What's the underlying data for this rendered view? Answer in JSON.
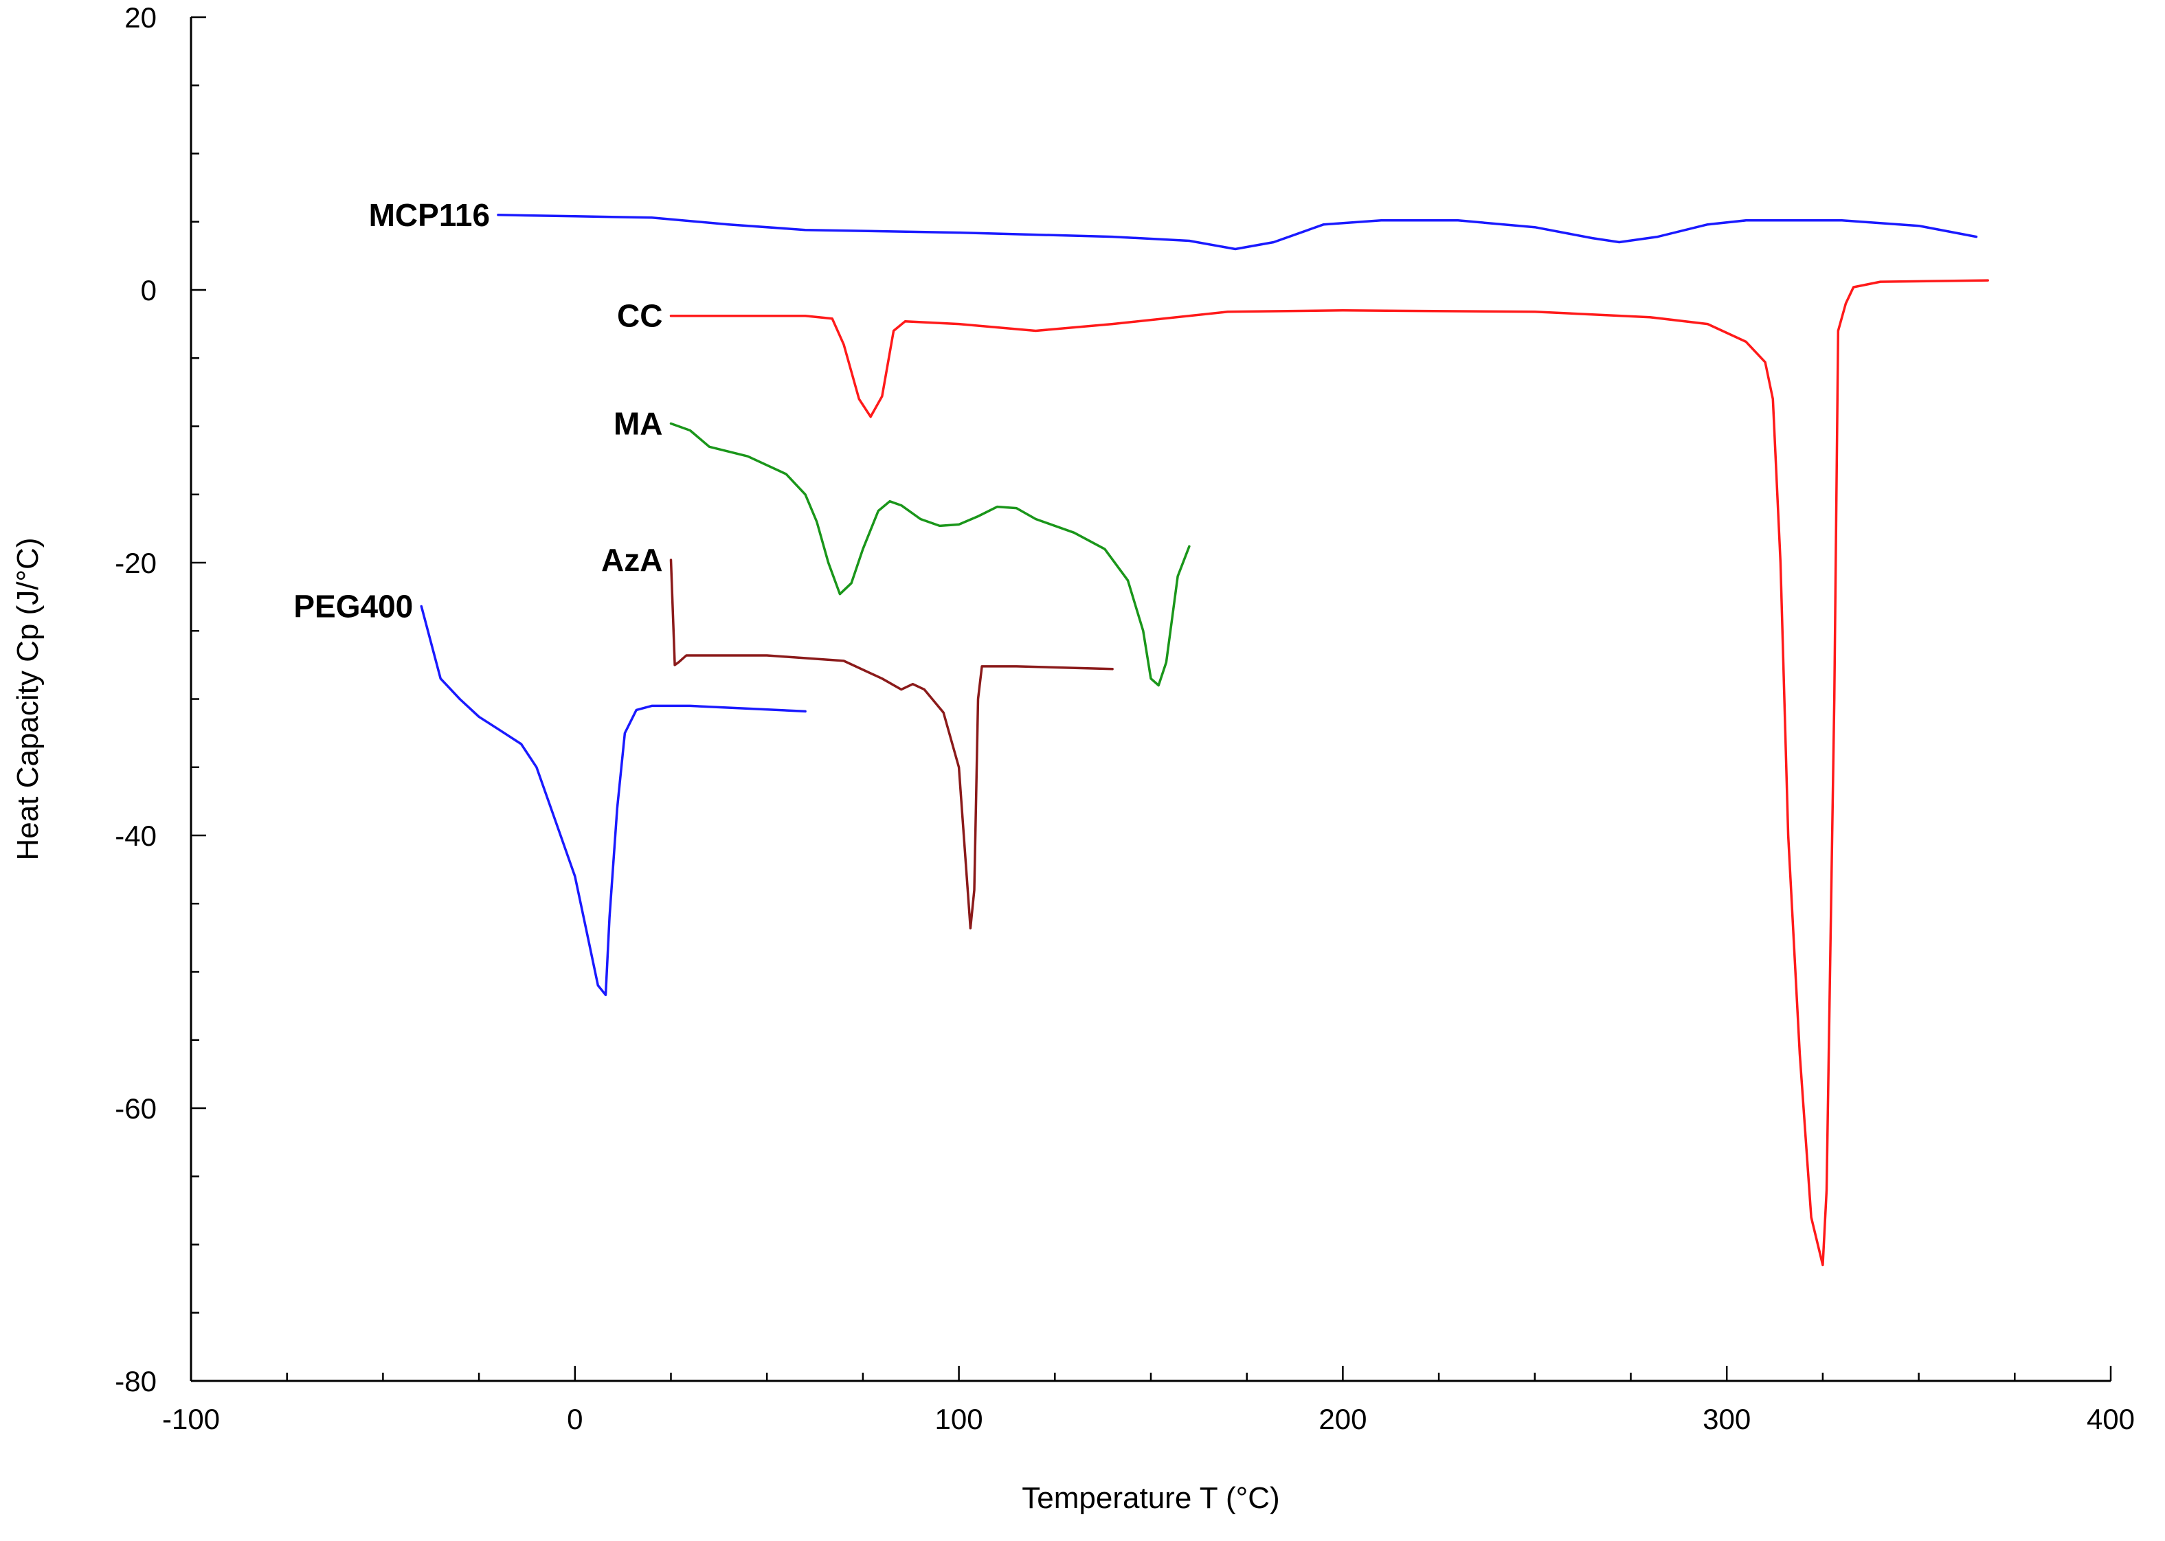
{
  "chart_data": {
    "type": "line",
    "title": "",
    "xlabel": "Temperature T (°C)",
    "ylabel": "Heat Capacity Cp (J/°C)",
    "xlim": [
      -100,
      400
    ],
    "ylim": [
      -80,
      20
    ],
    "xticks": [
      -100,
      0,
      100,
      200,
      300,
      400
    ],
    "yticks": [
      -80,
      -60,
      -40,
      -20,
      0,
      20
    ],
    "grid": false,
    "series": [
      {
        "name": "MCP116",
        "color": "#1a1aff",
        "label_at": [
          -20,
          5.5
        ],
        "points": [
          [
            -20,
            5.5
          ],
          [
            0,
            5.4
          ],
          [
            20,
            5.3
          ],
          [
            40,
            4.8
          ],
          [
            60,
            4.4
          ],
          [
            100,
            4.2
          ],
          [
            140,
            3.9
          ],
          [
            160,
            3.6
          ],
          [
            172,
            3.0
          ],
          [
            182,
            3.5
          ],
          [
            195,
            4.8
          ],
          [
            210,
            5.1
          ],
          [
            230,
            5.1
          ],
          [
            250,
            4.6
          ],
          [
            265,
            3.8
          ],
          [
            272,
            3.5
          ],
          [
            282,
            3.9
          ],
          [
            295,
            4.8
          ],
          [
            305,
            5.1
          ],
          [
            330,
            5.1
          ],
          [
            350,
            4.7
          ],
          [
            365,
            3.9
          ]
        ]
      },
      {
        "name": "CC",
        "color": "#ff1a1a",
        "label_at": [
          25,
          -1.9
        ],
        "points": [
          [
            25,
            -1.9
          ],
          [
            60,
            -1.9
          ],
          [
            67,
            -2.1
          ],
          [
            70,
            -4
          ],
          [
            74,
            -8
          ],
          [
            77,
            -9.3
          ],
          [
            80,
            -7.8
          ],
          [
            83,
            -3
          ],
          [
            86,
            -2.3
          ],
          [
            100,
            -2.5
          ],
          [
            120,
            -3.0
          ],
          [
            140,
            -2.5
          ],
          [
            170,
            -1.6
          ],
          [
            200,
            -1.5
          ],
          [
            250,
            -1.6
          ],
          [
            280,
            -2.0
          ],
          [
            295,
            -2.5
          ],
          [
            305,
            -3.8
          ],
          [
            310,
            -5.3
          ],
          [
            312,
            -8
          ],
          [
            314,
            -20
          ],
          [
            316,
            -40
          ],
          [
            319,
            -56
          ],
          [
            322,
            -68
          ],
          [
            325,
            -71.5
          ],
          [
            326,
            -66
          ],
          [
            328,
            -30
          ],
          [
            329,
            -3
          ],
          [
            331,
            -1
          ],
          [
            333,
            0.2
          ],
          [
            340,
            0.6
          ],
          [
            368,
            0.7
          ]
        ]
      },
      {
        "name": "MA",
        "color": "#1a961a",
        "label_at": [
          25,
          -9.8
        ],
        "points": [
          [
            25,
            -9.8
          ],
          [
            30,
            -10.3
          ],
          [
            35,
            -11.5
          ],
          [
            45,
            -12.2
          ],
          [
            55,
            -13.5
          ],
          [
            60,
            -15
          ],
          [
            63,
            -17
          ],
          [
            66,
            -20
          ],
          [
            69,
            -22.3
          ],
          [
            72,
            -21.5
          ],
          [
            75,
            -19
          ],
          [
            79,
            -16.2
          ],
          [
            82,
            -15.5
          ],
          [
            85,
            -15.8
          ],
          [
            90,
            -16.8
          ],
          [
            95,
            -17.3
          ],
          [
            100,
            -17.2
          ],
          [
            105,
            -16.6
          ],
          [
            110,
            -15.9
          ],
          [
            115,
            -16.0
          ],
          [
            120,
            -16.8
          ],
          [
            130,
            -17.8
          ],
          [
            138,
            -19
          ],
          [
            144,
            -21.3
          ],
          [
            148,
            -25
          ],
          [
            150,
            -28.5
          ],
          [
            152,
            -29
          ],
          [
            154,
            -27.3
          ],
          [
            157,
            -21
          ],
          [
            160,
            -18.8
          ]
        ]
      },
      {
        "name": "AzA",
        "color": "#8b1a1a",
        "label_at": [
          25,
          -19.8
        ],
        "points": [
          [
            25,
            -19.8
          ],
          [
            26,
            -27.5
          ],
          [
            27,
            -27.3
          ],
          [
            29,
            -26.8
          ],
          [
            50,
            -26.8
          ],
          [
            70,
            -27.2
          ],
          [
            80,
            -28.5
          ],
          [
            85,
            -29.3
          ],
          [
            88,
            -28.9
          ],
          [
            91,
            -29.3
          ],
          [
            96,
            -31
          ],
          [
            100,
            -35
          ],
          [
            103,
            -46.8
          ],
          [
            104,
            -44
          ],
          [
            105,
            -30
          ],
          [
            106,
            -27.6
          ],
          [
            115,
            -27.6
          ],
          [
            140,
            -27.8
          ]
        ]
      },
      {
        "name": "PEG400",
        "color": "#1a1aff",
        "label_at": [
          -40,
          -23.2
        ],
        "points": [
          [
            -40,
            -23.2
          ],
          [
            -35,
            -28.5
          ],
          [
            -30,
            -30
          ],
          [
            -25,
            -31.3
          ],
          [
            -20,
            -32.2
          ],
          [
            -14,
            -33.3
          ],
          [
            -10,
            -35
          ],
          [
            -5,
            -39
          ],
          [
            0,
            -43
          ],
          [
            3,
            -47
          ],
          [
            6,
            -51
          ],
          [
            8,
            -51.7
          ],
          [
            9,
            -46
          ],
          [
            11,
            -38
          ],
          [
            13,
            -32.5
          ],
          [
            16,
            -30.8
          ],
          [
            20,
            -30.5
          ],
          [
            30,
            -30.5
          ],
          [
            45,
            -30.7
          ],
          [
            60,
            -30.9
          ]
        ]
      }
    ]
  }
}
